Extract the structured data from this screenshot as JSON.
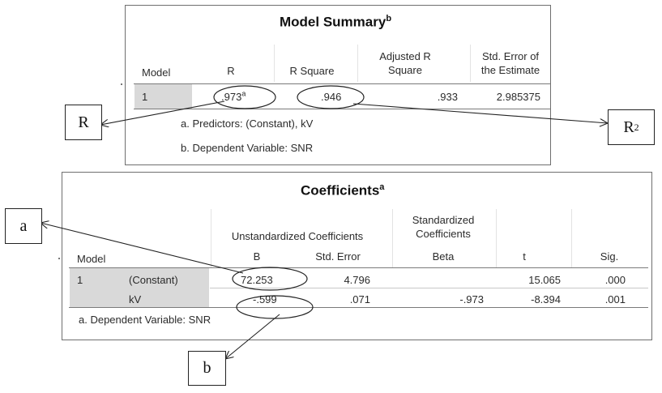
{
  "model_summary": {
    "title": "Model Summary",
    "title_sup": "b",
    "headers": {
      "model": "Model",
      "r": "R",
      "r_square": "R Square",
      "adj_line1": "Adjusted R",
      "adj_line2": "Square",
      "se_line1": "Std. Error of",
      "se_line2": "the Estimate"
    },
    "row": {
      "model": "1",
      "r": ".973",
      "r_sup": "a",
      "r_square": ".946",
      "adjusted_r_square": ".933",
      "std_error": "2.985375"
    },
    "footnotes": [
      "a. Predictors: (Constant), kV",
      "b. Dependent Variable: SNR"
    ]
  },
  "coefficients": {
    "title": "Coefficients",
    "title_sup": "a",
    "headers": {
      "unstd": "Unstandardized Coefficients",
      "std_line1": "Standardized",
      "std_line2": "Coefficients",
      "model": "Model",
      "b": "B",
      "std_error": "Std. Error",
      "beta": "Beta",
      "t": "t",
      "sig": "Sig."
    },
    "rows": [
      {
        "model": "1",
        "term": "(Constant)",
        "b": "72.253",
        "std_error": "4.796",
        "beta": "",
        "t": "15.065",
        "sig": ".000"
      },
      {
        "model": "",
        "term": "kV",
        "b": "-.599",
        "std_error": ".071",
        "beta": "-.973",
        "t": "-8.394",
        "sig": ".001"
      }
    ],
    "footnote": "a. Dependent Variable: SNR"
  },
  "callouts": {
    "r": "R",
    "r2_base": "R",
    "r2_sup": "2",
    "a": "a",
    "b": "b"
  }
}
